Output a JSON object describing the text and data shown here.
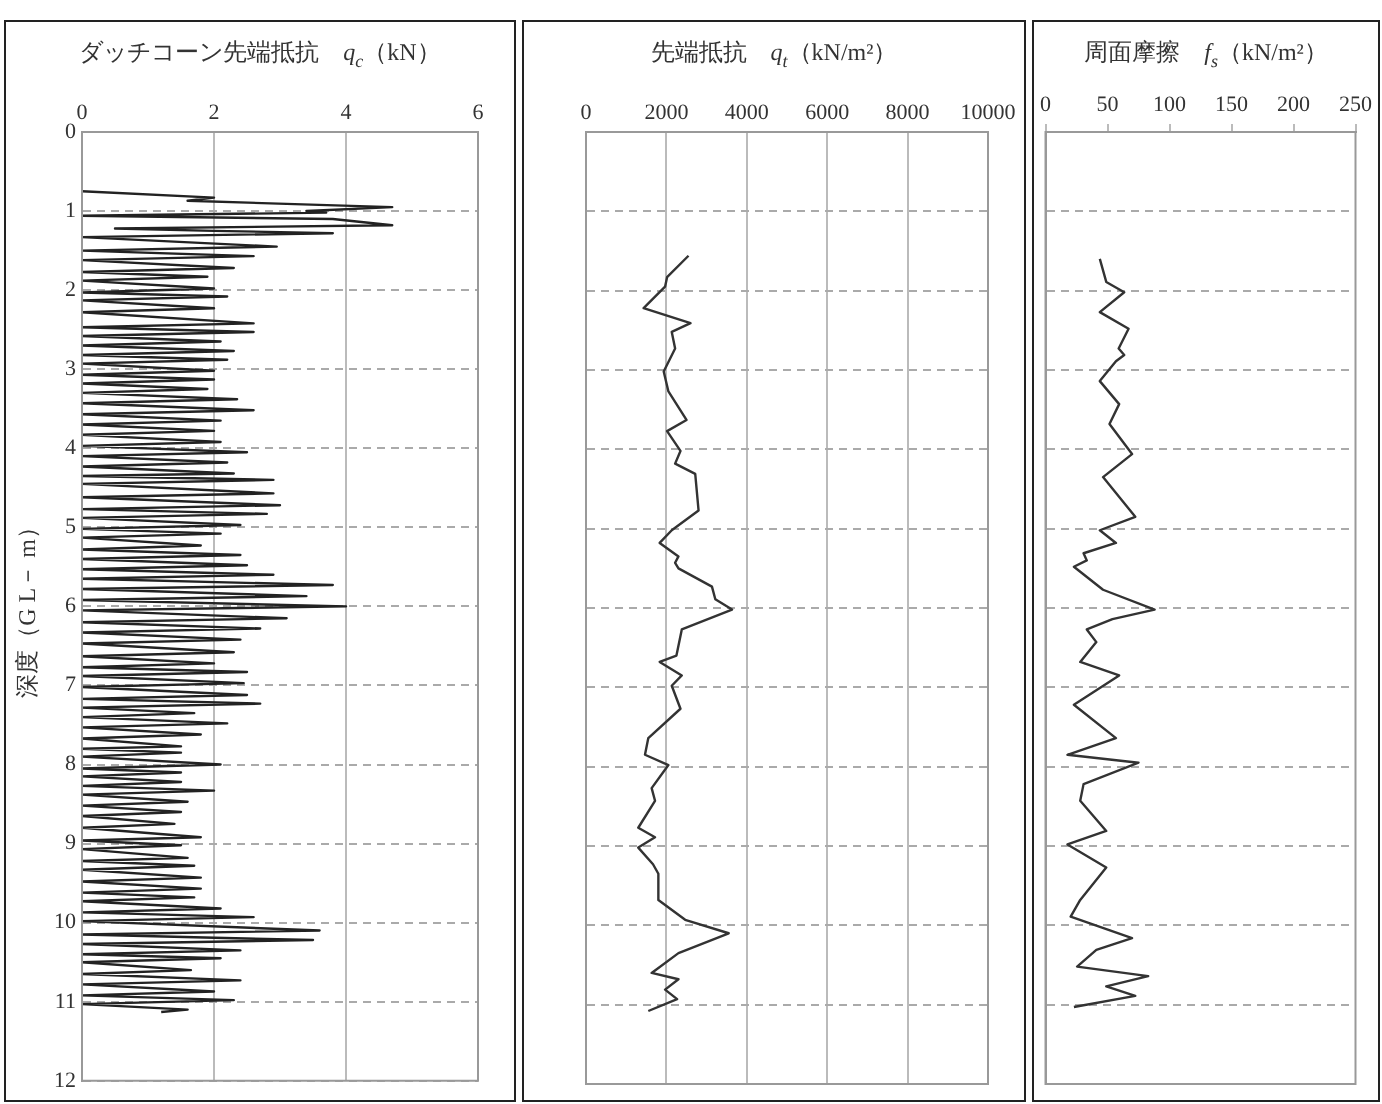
{
  "chart_data": [
    {
      "type": "line",
      "xlabel": "ダッチコーン先端抵抗　q$_{c}$（kN）",
      "ylabel": "深度（G L－ m）",
      "xlim": [
        0,
        6
      ],
      "xticks": [
        0,
        2,
        4,
        6
      ],
      "ylim": [
        12,
        0
      ],
      "yticks": [
        0,
        1,
        2,
        3,
        4,
        5,
        6,
        7,
        8,
        9,
        10,
        11,
        12
      ],
      "grid": true,
      "series": [
        {
          "color": "#222222",
          "x": [
            0,
            2.0,
            1.6,
            4.7,
            3.4,
            3.7,
            0,
            3.8,
            4.7,
            0.5,
            2.0,
            3.8,
            0,
            2.95,
            0,
            2.6,
            0,
            2.3,
            0,
            1.9,
            0,
            2.0,
            0,
            2.2,
            0,
            2.0,
            0,
            2.6,
            0,
            2.6,
            0,
            2.1,
            0,
            2.3,
            0,
            2.2,
            0,
            2.0,
            0,
            2.0,
            0,
            1.9,
            0,
            2.35,
            0,
            2.6,
            0,
            2.1,
            0,
            2.0,
            0,
            2.1,
            0,
            2.5,
            0,
            2.2,
            0,
            2.3,
            0,
            2.9,
            0,
            2.9,
            0,
            3.0,
            0,
            2.8,
            0,
            2.4,
            0,
            2.1,
            0,
            1.8,
            0,
            2.4,
            0,
            2.5,
            0,
            2.9,
            0,
            3.8,
            0,
            3.4,
            0,
            4.0,
            0,
            3.1,
            0,
            2.7,
            0,
            2.4,
            0,
            2.3,
            0,
            2.0,
            0,
            2.5,
            0,
            2.45,
            0,
            2.5,
            0,
            2.7,
            0,
            1.7,
            0,
            2.2,
            0,
            1.8,
            0,
            1.5,
            0,
            1.5,
            0,
            2.1,
            0,
            1.5,
            0,
            1.5,
            0,
            2.0,
            0,
            1.6,
            0,
            1.5,
            0,
            1.4,
            0,
            1.8,
            0,
            1.5,
            0,
            1.6,
            0,
            1.7,
            0,
            1.8,
            0,
            1.8,
            0,
            1.7,
            0,
            2.1,
            0,
            2.6,
            0,
            3.6,
            0,
            3.5,
            0,
            2.4,
            0,
            2.1,
            0,
            1.65,
            0,
            2.4,
            0,
            2.0,
            0,
            2.3,
            0,
            1.6,
            1.2
          ],
          "values": [
            0.75,
            0.83,
            0.87,
            0.95,
            1.0,
            1.02,
            1.06,
            1.1,
            1.18,
            1.22,
            1.25,
            1.28,
            1.33,
            1.45,
            1.5,
            1.57,
            1.62,
            1.72,
            1.77,
            1.83,
            1.88,
            1.98,
            2.03,
            2.08,
            2.13,
            2.23,
            2.28,
            2.42,
            2.47,
            2.53,
            2.58,
            2.65,
            2.7,
            2.77,
            2.82,
            2.88,
            2.93,
            3.02,
            3.07,
            3.13,
            3.18,
            3.25,
            3.3,
            3.38,
            3.43,
            3.52,
            3.57,
            3.65,
            3.7,
            3.78,
            3.83,
            3.92,
            3.97,
            4.05,
            4.1,
            4.18,
            4.23,
            4.32,
            4.35,
            4.4,
            4.45,
            4.57,
            4.62,
            4.72,
            4.77,
            4.83,
            4.88,
            4.97,
            5.02,
            5.08,
            5.13,
            5.23,
            5.28,
            5.35,
            5.4,
            5.48,
            5.53,
            5.6,
            5.65,
            5.73,
            5.78,
            5.87,
            5.92,
            6.0,
            6.05,
            6.15,
            6.2,
            6.28,
            6.33,
            6.42,
            6.47,
            6.58,
            6.63,
            6.72,
            6.77,
            6.83,
            6.88,
            6.97,
            7.02,
            7.12,
            7.17,
            7.23,
            7.28,
            7.35,
            7.4,
            7.48,
            7.53,
            7.62,
            7.67,
            7.77,
            7.8,
            7.85,
            7.9,
            8.0,
            8.05,
            8.1,
            8.15,
            8.22,
            8.27,
            8.33,
            8.38,
            8.47,
            8.52,
            8.6,
            8.65,
            8.75,
            8.8,
            8.92,
            8.96,
            9.02,
            9.07,
            9.18,
            9.22,
            9.28,
            9.33,
            9.43,
            9.48,
            9.57,
            9.62,
            9.68,
            9.73,
            9.82,
            9.87,
            9.93,
            9.98,
            10.1,
            10.15,
            10.22,
            10.27,
            10.35,
            10.4,
            10.45,
            10.5,
            10.6,
            10.65,
            10.73,
            10.78,
            10.87,
            10.92,
            10.98,
            11.03,
            11.1,
            11.13
          ]
        }
      ]
    },
    {
      "type": "line",
      "xlabel": "先端抵抗　q$_{t}$（kN/m²）",
      "xlim": [
        0,
        10000
      ],
      "xticks": [
        0,
        2000,
        4000,
        6000,
        8000,
        10000
      ],
      "ylim": [
        12,
        0
      ],
      "yticks": [
        0,
        1,
        2,
        3,
        4,
        5,
        6,
        7,
        8,
        9,
        10,
        11,
        12
      ],
      "grid": true,
      "tick_labels": "x",
      "series": [
        {
          "color": "#333333",
          "x": [
            2550,
            2017,
            1967,
            1433,
            2600,
            2133,
            2217,
            1933,
            2050,
            2500,
            2017,
            2350,
            2217,
            2717,
            2800,
            2133,
            1833,
            2300,
            2217,
            2300,
            3133,
            3217,
            3633,
            2383,
            2250,
            1833,
            2383,
            2133,
            2350,
            1550,
            1467,
            2050,
            1633,
            1717,
            1300,
            1717,
            1300,
            1667,
            1800,
            1800,
            2467,
            3550,
            2300,
            1633,
            2300,
            1967,
            2267,
            1550
          ],
          "values": [
            1.56,
            1.83,
            1.95,
            2.22,
            2.41,
            2.52,
            2.73,
            3.02,
            3.27,
            3.63,
            3.77,
            4.02,
            4.18,
            4.31,
            4.77,
            5.02,
            5.18,
            5.35,
            5.43,
            5.5,
            5.73,
            5.89,
            6.02,
            6.27,
            6.6,
            6.68,
            6.85,
            6.98,
            7.27,
            7.64,
            7.85,
            7.98,
            8.27,
            8.43,
            8.77,
            8.89,
            9.02,
            9.23,
            9.35,
            9.68,
            9.93,
            10.1,
            10.35,
            10.6,
            10.68,
            10.81,
            10.93,
            11.08
          ]
        }
      ]
    },
    {
      "type": "line",
      "xlabel": "周面摩擦　f$_{s}$（kN/m²）",
      "xlim": [
        0,
        250
      ],
      "xticks": [
        0,
        50,
        100,
        150,
        200,
        250
      ],
      "ylim": [
        12,
        0
      ],
      "yticks": [
        0,
        1,
        2,
        3,
        4,
        5,
        6,
        7,
        8,
        9,
        10,
        11,
        12
      ],
      "grid": "y",
      "tick_labels": "x",
      "series": [
        {
          "color": "#333333",
          "x": [
            43.8,
            49,
            63.5,
            43.8,
            67,
            59,
            63.5,
            56.8,
            43.8,
            59.4,
            51.6,
            69.8,
            46.4,
            72.4,
            43.8,
            56.8,
            30.7,
            33.3,
            22.9,
            46.4,
            88,
            54,
            33.3,
            41,
            28,
            59.4,
            22.9,
            56.8,
            17.7,
            75,
            30.7,
            28,
            49,
            17.7,
            49,
            28,
            20.3,
            69.8,
            41,
            25.5,
            82.8,
            49,
            72.4,
            22.9
          ],
          "values": [
            1.6,
            1.89,
            2.02,
            2.27,
            2.48,
            2.73,
            2.81,
            2.89,
            3.14,
            3.43,
            3.68,
            4.06,
            4.35,
            4.85,
            5.02,
            5.18,
            5.31,
            5.4,
            5.48,
            5.77,
            6.02,
            6.14,
            6.27,
            6.43,
            6.68,
            6.85,
            7.22,
            7.64,
            7.85,
            7.95,
            8.22,
            8.43,
            8.81,
            8.98,
            9.27,
            9.68,
            9.89,
            10.16,
            10.31,
            10.52,
            10.64,
            10.77,
            10.89,
            11.03
          ]
        }
      ]
    }
  ]
}
